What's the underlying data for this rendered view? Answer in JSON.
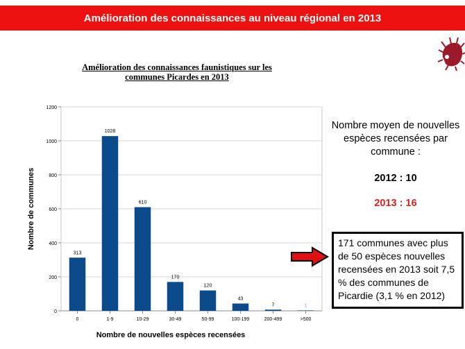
{
  "banner": {
    "title": "Amélioration des connaissances au niveau régional en 2013"
  },
  "chart_title": {
    "line1": "Amélioration des connaissances faunistiques sur les",
    "line2": "communes Picardes en 2013"
  },
  "chart_data": {
    "type": "bar",
    "title": "Amélioration des connaissances faunistiques sur les communes Picardes en 2013",
    "xlabel": "Nombre de nouvelles espèces recensées",
    "ylabel": "Nombre de communes",
    "categories": [
      "0",
      "1-9",
      "10-29",
      "30-49",
      "50-99",
      "100-199",
      "200-499",
      ">500"
    ],
    "values": [
      313,
      1028,
      610,
      170,
      120,
      43,
      7,
      1
    ],
    "ylim": [
      0,
      1200
    ],
    "yticks": [
      0,
      200,
      400,
      600,
      800,
      1000,
      1200
    ],
    "grid": true,
    "legend": "none",
    "colors": {
      "bar": "#0b4a8b"
    }
  },
  "stats": {
    "heading": "Nombre moyen de nouvelles espèces recensées par commune :",
    "value_2012": "2012 : 10",
    "value_2013": "2013 : 16"
  },
  "note": {
    "text": "171 communes avec plus de 50 espèces nouvelles recensées en 2013 soit 7,5 % des communes de Picardie (3,1 % en 2012)"
  },
  "colors": {
    "banner": "#ee1111",
    "highlight": "#e02020",
    "logo": "#9a1a2a"
  }
}
